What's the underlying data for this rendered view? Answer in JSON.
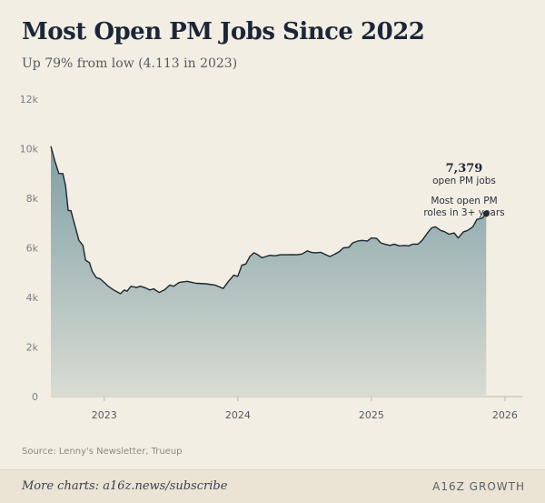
{
  "header": {
    "title": "Most Open PM Jobs Since 2022",
    "subtitle": "Up 79% from low (4.113 in 2023)"
  },
  "source": "Source: Lenny's Newsletter, Trueup",
  "footer": {
    "link_text": "More charts: a16z.news/subscribe",
    "brand": "A16Z GROWTH"
  },
  "colors": {
    "background": "#f3eee3",
    "area_top": "#7f9fa6",
    "area_bottom": "#d9dcd3",
    "line": "#1e2530",
    "text": "#1b2638"
  },
  "chart_data": {
    "type": "area",
    "title": "Most Open PM Jobs Since 2022",
    "subtitle": "Up 79% from low (4.113 in 2023)",
    "xlabel": "",
    "ylabel": "",
    "ylim": [
      0,
      12000
    ],
    "yticks": [
      0,
      2000,
      4000,
      6000,
      8000,
      10000,
      12000
    ],
    "ytick_labels": [
      "0",
      "2k",
      "4k",
      "6k",
      "8k",
      "10k",
      "12k"
    ],
    "xticks": [
      2023,
      2024,
      2025,
      2026
    ],
    "xtick_labels": [
      "2023",
      "2024",
      "2025",
      "2026"
    ],
    "xlim": [
      2022.6,
      2026.13
    ],
    "grid": false,
    "series": [
      {
        "points": [
          [
            2022.6,
            10100
          ],
          [
            2022.63,
            9500
          ],
          [
            2022.66,
            9000
          ],
          [
            2022.69,
            9000
          ],
          [
            2022.71,
            8500
          ],
          [
            2022.73,
            7500
          ],
          [
            2022.75,
            7500
          ],
          [
            2022.78,
            6900
          ],
          [
            2022.81,
            6300
          ],
          [
            2022.84,
            6100
          ],
          [
            2022.86,
            5500
          ],
          [
            2022.89,
            5400
          ],
          [
            2022.91,
            5050
          ],
          [
            2022.94,
            4800
          ],
          [
            2022.97,
            4750
          ],
          [
            2023.0,
            4600
          ],
          [
            2023.03,
            4450
          ],
          [
            2023.07,
            4300
          ],
          [
            2023.12,
            4150
          ],
          [
            2023.15,
            4300
          ],
          [
            2023.17,
            4250
          ],
          [
            2023.2,
            4450
          ],
          [
            2023.24,
            4400
          ],
          [
            2023.27,
            4450
          ],
          [
            2023.31,
            4380
          ],
          [
            2023.34,
            4300
          ],
          [
            2023.37,
            4350
          ],
          [
            2023.41,
            4200
          ],
          [
            2023.45,
            4300
          ],
          [
            2023.49,
            4500
          ],
          [
            2023.52,
            4450
          ],
          [
            2023.56,
            4600
          ],
          [
            2023.62,
            4650
          ],
          [
            2023.66,
            4600
          ],
          [
            2023.69,
            4570
          ],
          [
            2023.76,
            4550
          ],
          [
            2023.83,
            4500
          ],
          [
            2023.89,
            4360
          ],
          [
            2023.93,
            4650
          ],
          [
            2023.97,
            4900
          ],
          [
            2024.0,
            4850
          ],
          [
            2024.03,
            5300
          ],
          [
            2024.06,
            5350
          ],
          [
            2024.09,
            5650
          ],
          [
            2024.12,
            5800
          ],
          [
            2024.15,
            5720
          ],
          [
            2024.18,
            5600
          ],
          [
            2024.21,
            5650
          ],
          [
            2024.24,
            5700
          ],
          [
            2024.28,
            5680
          ],
          [
            2024.32,
            5720
          ],
          [
            2024.37,
            5720
          ],
          [
            2024.41,
            5730
          ],
          [
            2024.44,
            5720
          ],
          [
            2024.48,
            5750
          ],
          [
            2024.52,
            5880
          ],
          [
            2024.55,
            5820
          ],
          [
            2024.58,
            5800
          ],
          [
            2024.62,
            5820
          ],
          [
            2024.66,
            5720
          ],
          [
            2024.69,
            5650
          ],
          [
            2024.72,
            5730
          ],
          [
            2024.76,
            5850
          ],
          [
            2024.79,
            6000
          ],
          [
            2024.83,
            6020
          ],
          [
            2024.86,
            6200
          ],
          [
            2024.9,
            6280
          ],
          [
            2024.93,
            6300
          ],
          [
            2024.97,
            6280
          ],
          [
            2025.0,
            6400
          ],
          [
            2025.04,
            6380
          ],
          [
            2025.07,
            6200
          ],
          [
            2025.1,
            6150
          ],
          [
            2025.14,
            6100
          ],
          [
            2025.17,
            6150
          ],
          [
            2025.21,
            6080
          ],
          [
            2025.25,
            6100
          ],
          [
            2025.28,
            6080
          ],
          [
            2025.31,
            6150
          ],
          [
            2025.35,
            6150
          ],
          [
            2025.38,
            6300
          ],
          [
            2025.42,
            6600
          ],
          [
            2025.45,
            6800
          ],
          [
            2025.48,
            6850
          ],
          [
            2025.52,
            6700
          ],
          [
            2025.55,
            6650
          ],
          [
            2025.58,
            6550
          ],
          [
            2025.62,
            6600
          ],
          [
            2025.65,
            6400
          ],
          [
            2025.69,
            6650
          ],
          [
            2025.72,
            6700
          ],
          [
            2025.76,
            6850
          ],
          [
            2025.79,
            7150
          ],
          [
            2025.83,
            7200
          ],
          [
            2025.86,
            7379
          ]
        ]
      }
    ],
    "annotation": {
      "value_label": "7,379",
      "unit_label": "open PM jobs",
      "note_line1": "Most open PM",
      "note_line2": "roles in 3+ years"
    }
  }
}
